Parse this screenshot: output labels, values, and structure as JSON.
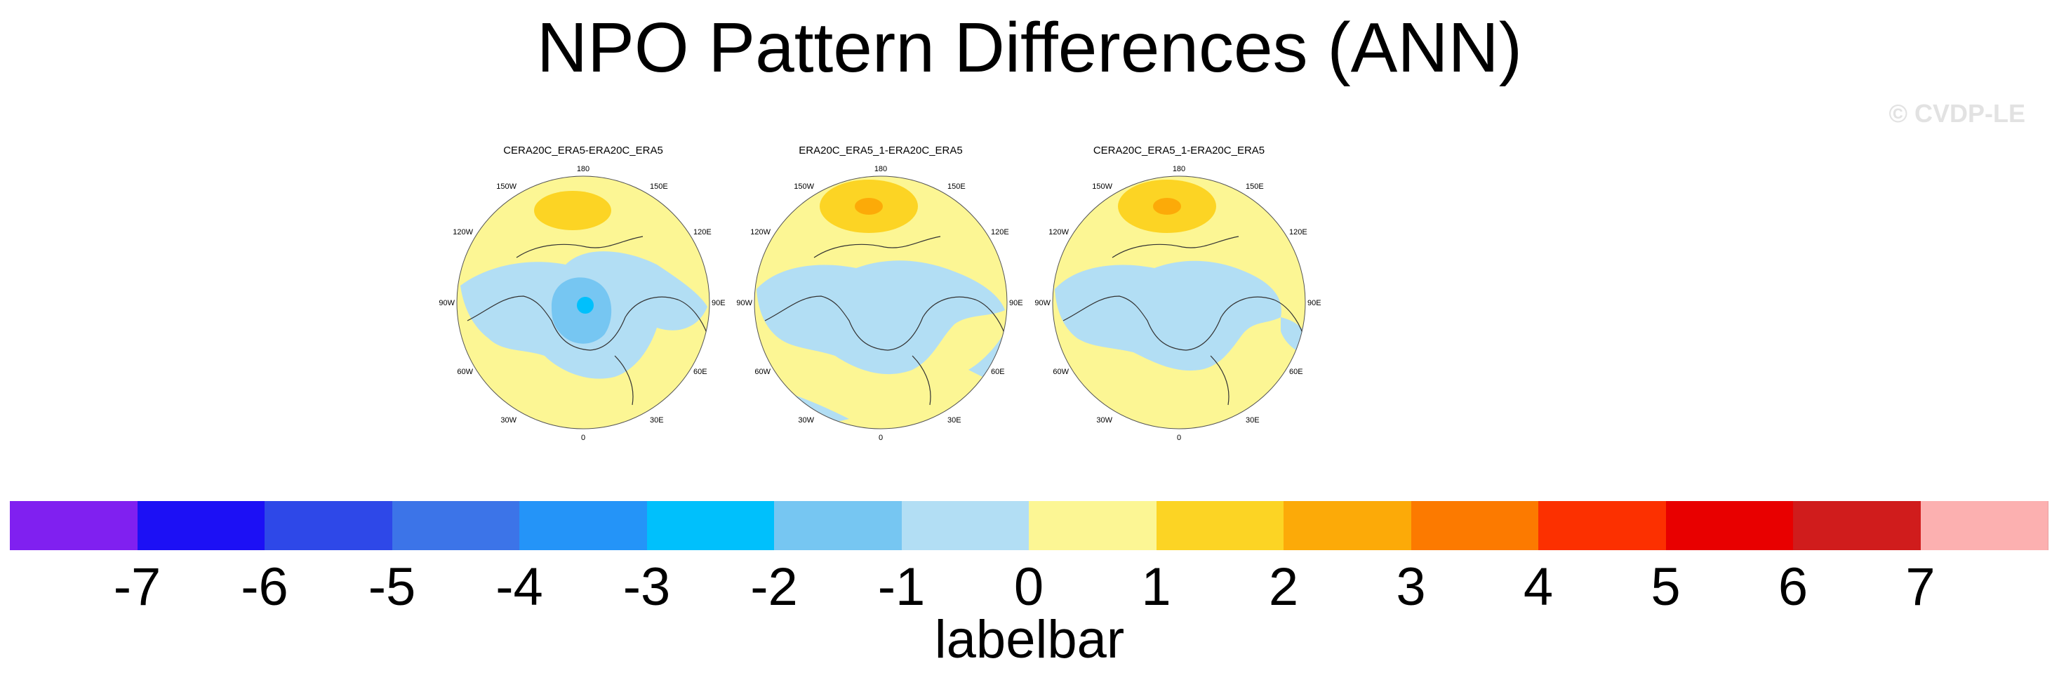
{
  "title": "NPO Pattern Differences (ANN)",
  "watermark": "© CVDP-LE",
  "panels": [
    {
      "title": "CERA20C_ERA5-ERA20C_ERA5"
    },
    {
      "title": "ERA20C_ERA5_1-ERA20C_ERA5"
    },
    {
      "title": "CERA20C_ERA5_1-ERA20C_ERA5"
    }
  ],
  "longitude_labels": [
    "180",
    "150E",
    "120E",
    "90E",
    "60E",
    "30E",
    "0",
    "30W",
    "60W",
    "90W",
    "120W",
    "150W"
  ],
  "labelbar": {
    "title": "labelbar",
    "ticks": [
      "-7",
      "-6",
      "-5",
      "-4",
      "-3",
      "-2",
      "-1",
      "0",
      "1",
      "2",
      "3",
      "4",
      "5",
      "6",
      "7"
    ],
    "colors": [
      "#8020f0",
      "#1c10f5",
      "#2e48e8",
      "#3c74e8",
      "#2494f8",
      "#00c0fc",
      "#76c6f2",
      "#b2def4",
      "#fcf694",
      "#fcd424",
      "#fcaa08",
      "#fc7a00",
      "#fc3000",
      "#e80000",
      "#d01c1c",
      "#fcb0b0"
    ]
  }
}
